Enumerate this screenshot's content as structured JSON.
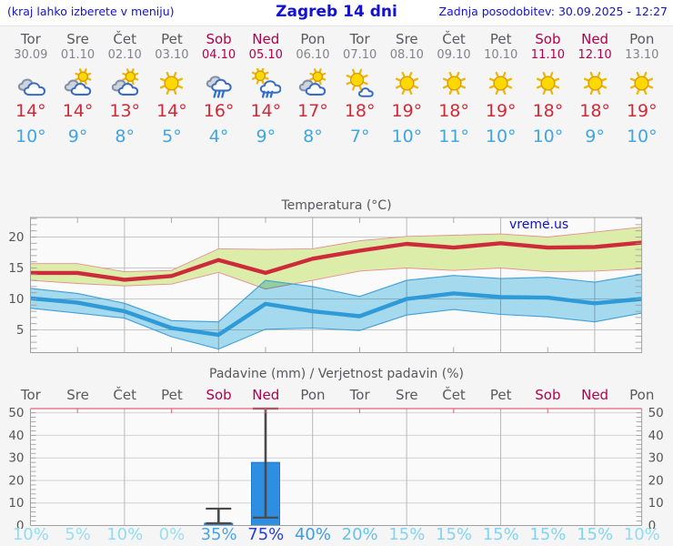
{
  "header": {
    "note": "(kraj lahko izberete v meniju)",
    "title": "Zagreb 14 dni",
    "updated": "Zadnja posodobitev: 30.09.2025 - 12:27"
  },
  "watermark": "vreme.us",
  "days": [
    {
      "name": "Tor",
      "date": "30.09",
      "weekend": false
    },
    {
      "name": "Sre",
      "date": "01.10",
      "weekend": false
    },
    {
      "name": "Čet",
      "date": "02.10",
      "weekend": false
    },
    {
      "name": "Pet",
      "date": "03.10",
      "weekend": false
    },
    {
      "name": "Sob",
      "date": "04.10",
      "weekend": true
    },
    {
      "name": "Ned",
      "date": "05.10",
      "weekend": true
    },
    {
      "name": "Pon",
      "date": "06.10",
      "weekend": false
    },
    {
      "name": "Tor",
      "date": "07.10",
      "weekend": false
    },
    {
      "name": "Sre",
      "date": "08.10",
      "weekend": false
    },
    {
      "name": "Čet",
      "date": "09.10",
      "weekend": false
    },
    {
      "name": "Pet",
      "date": "10.10",
      "weekend": false
    },
    {
      "name": "Sob",
      "date": "11.10",
      "weekend": true
    },
    {
      "name": "Ned",
      "date": "12.10",
      "weekend": true
    },
    {
      "name": "Pon",
      "date": "13.10",
      "weekend": false
    }
  ],
  "icons": [
    "cloudy",
    "sun-cloud",
    "sun-cloud",
    "sun",
    "rain",
    "sun-cloud-rain",
    "sun-cloud",
    "sun-small-cloud",
    "sun",
    "sun",
    "sun",
    "sun",
    "sun",
    "sun"
  ],
  "temps_high": [
    "14°",
    "14°",
    "13°",
    "14°",
    "16°",
    "14°",
    "17°",
    "18°",
    "19°",
    "18°",
    "19°",
    "18°",
    "18°",
    "19°"
  ],
  "temps_low": [
    "10°",
    "9°",
    "8°",
    "5°",
    "4°",
    "9°",
    "8°",
    "7°",
    "10°",
    "11°",
    "10°",
    "10°",
    "9°",
    "10°"
  ],
  "colors": {
    "high_line": "#ce2b3a",
    "low_line": "#2f9ad8",
    "high_band": "#dcedaa",
    "high_band_edge": "#e49090",
    "low_band": "#a8def2",
    "low_band_edge": "#3fa0d8",
    "bar": "#2e8ee2",
    "whisker": "#4a4a4a",
    "grid_v": "#b8b8b8",
    "grid_h": "#c8c8c8",
    "frame": "#a0a0a0",
    "precip_top_line": "#e26080",
    "plot_bg": "#fafafa",
    "tick_label": "#555555"
  },
  "chart_data": [
    {
      "type": "line",
      "title": "Temperatura (°C)",
      "categories": [
        "Tor",
        "Sre",
        "Čet",
        "Pet",
        "Sob",
        "Ned",
        "Pon",
        "Tor",
        "Sre",
        "Čet",
        "Pet",
        "Sob",
        "Ned",
        "Pon"
      ],
      "ylim": [
        1.4,
        23.2
      ],
      "yticks": [
        5,
        10,
        15,
        20
      ],
      "grid": true,
      "legend": "none",
      "series": [
        {
          "name": "high",
          "values": [
            14.2,
            14.2,
            13.1,
            13.7,
            16.3,
            14.2,
            16.5,
            17.8,
            18.9,
            18.3,
            19.0,
            18.3,
            18.4,
            19.1
          ]
        },
        {
          "name": "high_range_upper",
          "values": [
            15.7,
            15.7,
            14.4,
            14.6,
            18.1,
            18.0,
            18.1,
            19.4,
            20.1,
            20.3,
            20.5,
            20.0,
            20.8,
            21.6
          ]
        },
        {
          "name": "high_range_lower",
          "values": [
            13.0,
            12.5,
            12.1,
            12.4,
            14.3,
            11.6,
            13.0,
            14.5,
            15.0,
            14.6,
            15.0,
            14.4,
            14.5,
            14.9
          ]
        },
        {
          "name": "low",
          "values": [
            10.1,
            9.4,
            8.0,
            5.3,
            4.2,
            9.2,
            8.0,
            7.2,
            10.0,
            10.9,
            10.3,
            10.2,
            9.3,
            10.0
          ]
        },
        {
          "name": "low_range_upper",
          "values": [
            11.7,
            10.9,
            9.3,
            6.5,
            6.3,
            13.0,
            12.0,
            10.4,
            13.0,
            13.8,
            13.3,
            13.5,
            12.7,
            14.0
          ]
        },
        {
          "name": "low_range_lower",
          "values": [
            8.5,
            7.7,
            6.9,
            3.9,
            1.9,
            5.1,
            5.3,
            4.9,
            7.4,
            8.3,
            7.5,
            7.1,
            6.3,
            7.7
          ]
        }
      ]
    },
    {
      "type": "bar",
      "title": "Padavine (mm) / Verjetnost padavin (%)",
      "categories": [
        "Tor",
        "Sre",
        "Čet",
        "Pet",
        "Sob",
        "Ned",
        "Pon",
        "Tor",
        "Sre",
        "Čet",
        "Pet",
        "Sob",
        "Ned",
        "Pon"
      ],
      "values": [
        0,
        0,
        0,
        0,
        1,
        28,
        0,
        0,
        0,
        0,
        0,
        0,
        0,
        0
      ],
      "whiskers": [
        {
          "index": 4,
          "low": 1,
          "high": 7.5
        },
        {
          "index": 5,
          "low": 3.5,
          "high": 52
        }
      ],
      "ylim": [
        0,
        52
      ],
      "yticks": [
        0,
        10,
        20,
        30,
        40,
        50
      ],
      "probabilities": [
        {
          "label": "10%",
          "color": "#90dcf5"
        },
        {
          "label": "5%",
          "color": "#9adef6"
        },
        {
          "label": "10%",
          "color": "#90dcf5"
        },
        {
          "label": "0%",
          "color": "#9adef6"
        },
        {
          "label": "35%",
          "color": "#4ba4e2"
        },
        {
          "label": "75%",
          "color": "#2b3ecb"
        },
        {
          "label": "40%",
          "color": "#3d9de0"
        },
        {
          "label": "20%",
          "color": "#63c3ec"
        },
        {
          "label": "15%",
          "color": "#82d4f1"
        },
        {
          "label": "15%",
          "color": "#82d4f1"
        },
        {
          "label": "15%",
          "color": "#82d4f1"
        },
        {
          "label": "15%",
          "color": "#82d4f1"
        },
        {
          "label": "15%",
          "color": "#82d4f1"
        },
        {
          "label": "10%",
          "color": "#90dcf5"
        }
      ]
    }
  ]
}
